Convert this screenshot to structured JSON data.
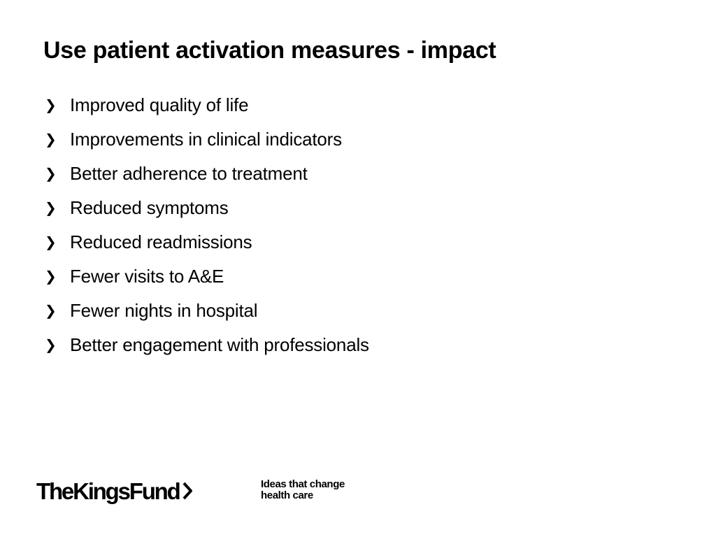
{
  "slide": {
    "title": "Use patient activation measures - impact",
    "bullet_marker": "❯",
    "bullets": [
      "Improved quality of life",
      "Improvements in clinical indicators",
      "Better adherence to treatment",
      "Reduced symptoms",
      "Reduced readmissions",
      "Fewer visits to A&E",
      "Fewer nights in hospital",
      "Better engagement with professionals"
    ]
  },
  "footer": {
    "logo_text": "TheKingsFund",
    "logo_icon": "chevron-right-icon",
    "tagline_line1": "Ideas that change",
    "tagline_line2": "health care"
  },
  "colors": {
    "background": "#ffffff",
    "text": "#000000"
  }
}
